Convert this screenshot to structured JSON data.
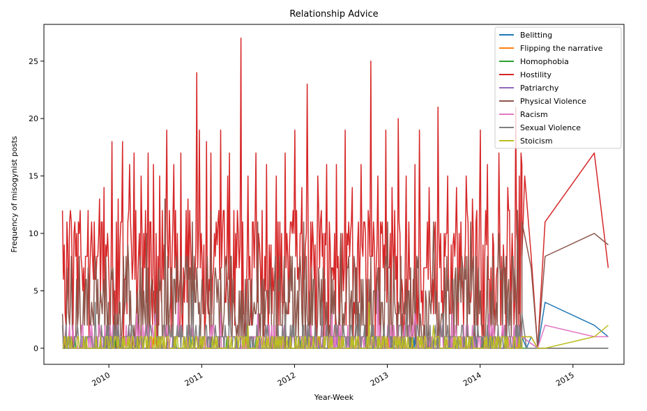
{
  "chart_data": {
    "type": "line",
    "title": "Relationship Advice",
    "xlabel": "Year-Week",
    "ylabel": "Frequency of misogynist posts",
    "xlim": [
      2009.3,
      2015.55
    ],
    "ylim": [
      -1.4,
      28.2
    ],
    "x_ticks": [
      {
        "value": 2010,
        "label": "2010"
      },
      {
        "value": 2011,
        "label": "2011"
      },
      {
        "value": 2012,
        "label": "2012"
      },
      {
        "value": 2013,
        "label": "2013"
      },
      {
        "value": 2014,
        "label": "2014"
      },
      {
        "value": 2015,
        "label": "2015"
      }
    ],
    "y_ticks": [
      0,
      5,
      10,
      15,
      20,
      25
    ],
    "legend_position": "top-right",
    "grid": false,
    "dense_range": [
      2009.5,
      2014.45
    ],
    "series": [
      {
        "name": "Belitting",
        "color": "#1f77b4",
        "dense_profile": {
          "base": 0,
          "high": 1,
          "p_high": 0.15,
          "spikes": []
        },
        "tail": [
          [
            2014.45,
            1
          ],
          [
            2014.5,
            0
          ],
          [
            2014.55,
            1
          ],
          [
            2014.62,
            0
          ],
          [
            2014.7,
            4
          ],
          [
            2015.23,
            2
          ],
          [
            2015.38,
            1
          ]
        ]
      },
      {
        "name": "Flipping the narrative",
        "color": "#ff7f0e",
        "dense_profile": {
          "base": 0,
          "high": 1,
          "p_high": 0.08,
          "spikes": []
        },
        "tail": [
          [
            2014.45,
            1
          ],
          [
            2014.55,
            1
          ],
          [
            2014.62,
            0
          ],
          [
            2015.38,
            0
          ]
        ]
      },
      {
        "name": "Homophobia",
        "color": "#2ca02c",
        "dense_profile": {
          "base": 0,
          "high": 1,
          "p_high": 0.06,
          "spikes": []
        },
        "tail": [
          [
            2014.45,
            0
          ],
          [
            2014.62,
            0
          ],
          [
            2015.38,
            0
          ]
        ]
      },
      {
        "name": "Hostility",
        "color": "#d62728",
        "dense_profile": {
          "base": 6,
          "high": 12,
          "p_high": 0.6,
          "spikes": [
            [
              2009.53,
              3
            ],
            [
              2009.72,
              5
            ],
            [
              2009.82,
              8
            ],
            [
              2009.9,
              13
            ],
            [
              2009.95,
              14
            ],
            [
              2010.03,
              18
            ],
            [
              2010.1,
              13
            ],
            [
              2010.15,
              18
            ],
            [
              2010.22,
              16
            ],
            [
              2010.27,
              17
            ],
            [
              2010.35,
              15
            ],
            [
              2010.42,
              17
            ],
            [
              2010.48,
              16
            ],
            [
              2010.55,
              15
            ],
            [
              2010.62,
              19
            ],
            [
              2010.7,
              16
            ],
            [
              2010.78,
              17
            ],
            [
              2010.85,
              13
            ],
            [
              2010.95,
              24
            ],
            [
              2010.98,
              19
            ],
            [
              2011.05,
              18
            ],
            [
              2011.1,
              17
            ],
            [
              2011.2,
              19
            ],
            [
              2011.28,
              15
            ],
            [
              2011.3,
              17
            ],
            [
              2011.42,
              27
            ],
            [
              2011.5,
              15
            ],
            [
              2011.58,
              17
            ],
            [
              2011.7,
              16
            ],
            [
              2011.8,
              15
            ],
            [
              2011.9,
              17
            ],
            [
              2012.0,
              19
            ],
            [
              2012.08,
              14
            ],
            [
              2012.14,
              23
            ],
            [
              2012.25,
              15
            ],
            [
              2012.35,
              16
            ],
            [
              2012.45,
              16
            ],
            [
              2012.55,
              19
            ],
            [
              2012.62,
              14
            ],
            [
              2012.72,
              16
            ],
            [
              2012.82,
              25
            ],
            [
              2012.9,
              15
            ],
            [
              2012.98,
              19
            ],
            [
              2013.05,
              14
            ],
            [
              2013.12,
              20
            ],
            [
              2013.2,
              15
            ],
            [
              2013.3,
              16
            ],
            [
              2013.35,
              19
            ],
            [
              2013.45,
              14
            ],
            [
              2013.55,
              21
            ],
            [
              2013.65,
              15
            ],
            [
              2013.75,
              14
            ],
            [
              2013.85,
              15
            ],
            [
              2013.92,
              13
            ],
            [
              2014.0,
              19
            ],
            [
              2014.08,
              16
            ],
            [
              2014.2,
              17
            ],
            [
              2014.3,
              14
            ],
            [
              2014.38,
              21
            ],
            [
              2014.42,
              15
            ],
            [
              2014.44,
              17
            ],
            [
              2014.46,
              16
            ]
          ]
        },
        "tail": [
          [
            2014.45,
            8
          ],
          [
            2014.48,
            15
          ],
          [
            2014.55,
            8
          ],
          [
            2014.62,
            0
          ],
          [
            2014.7,
            11
          ],
          [
            2015.23,
            17
          ],
          [
            2015.38,
            7
          ]
        ]
      },
      {
        "name": "Patriarchy",
        "color": "#9467bd",
        "dense_profile": {
          "base": 0,
          "high": 1,
          "p_high": 0.2,
          "spikes": []
        },
        "tail": [
          [
            2014.45,
            1
          ],
          [
            2014.62,
            0
          ],
          [
            2015.38,
            0
          ]
        ]
      },
      {
        "name": "Physical Violence",
        "color": "#8c564b",
        "dense_profile": {
          "base": 3,
          "high": 8,
          "p_high": 0.55,
          "spikes": [
            [
              2009.6,
              2
            ],
            [
              2009.75,
              6
            ],
            [
              2009.88,
              6
            ],
            [
              2010.2,
              9
            ],
            [
              2010.4,
              10
            ],
            [
              2010.6,
              13
            ],
            [
              2010.9,
              11
            ],
            [
              2011.1,
              12
            ],
            [
              2011.6,
              11
            ],
            [
              2012.1,
              11
            ],
            [
              2012.5,
              10
            ],
            [
              2013.0,
              11
            ],
            [
              2013.5,
              11
            ],
            [
              2013.9,
              11
            ],
            [
              2014.2,
              10
            ],
            [
              2014.4,
              12
            ]
          ]
        },
        "tail": [
          [
            2014.45,
            11
          ],
          [
            2014.55,
            7
          ],
          [
            2014.62,
            0
          ],
          [
            2014.7,
            8
          ],
          [
            2015.23,
            10
          ],
          [
            2015.38,
            9
          ]
        ]
      },
      {
        "name": "Racism",
        "color": "#e377c2",
        "dense_profile": {
          "base": 1,
          "high": 2,
          "p_high": 0.35,
          "spikes": [
            [
              2010.3,
              3
            ],
            [
              2010.5,
              3
            ],
            [
              2010.75,
              4
            ],
            [
              2011.2,
              3
            ],
            [
              2011.6,
              3
            ],
            [
              2012.4,
              3
            ],
            [
              2012.9,
              5
            ],
            [
              2013.3,
              3
            ],
            [
              2013.7,
              3
            ],
            [
              2014.1,
              3
            ]
          ]
        },
        "tail": [
          [
            2014.45,
            1
          ],
          [
            2014.62,
            0
          ],
          [
            2014.7,
            2
          ],
          [
            2015.23,
            1
          ],
          [
            2015.38,
            1
          ]
        ]
      },
      {
        "name": "Sexual Violence",
        "color": "#7f7f7f",
        "dense_profile": {
          "base": 1,
          "high": 2,
          "p_high": 0.3,
          "spikes": [
            [
              2009.5,
              2
            ],
            [
              2009.85,
              4
            ],
            [
              2010.9,
              5
            ],
            [
              2011.3,
              4
            ],
            [
              2011.9,
              3
            ],
            [
              2012.3,
              4
            ],
            [
              2012.7,
              3
            ],
            [
              2013.2,
              3
            ],
            [
              2013.6,
              3
            ],
            [
              2014.3,
              4
            ]
          ]
        },
        "tail": [
          [
            2014.45,
            3
          ],
          [
            2014.5,
            0
          ],
          [
            2014.62,
            0
          ],
          [
            2015.38,
            0
          ]
        ]
      },
      {
        "name": "Stoicism",
        "color": "#bcbd22",
        "dense_profile": {
          "base": 0,
          "high": 1,
          "p_high": 0.65,
          "spikes": [
            [
              2010.5,
              2
            ],
            [
              2011.5,
              2
            ],
            [
              2012.8,
              4
            ],
            [
              2013.5,
              2
            ]
          ]
        },
        "tail": [
          [
            2014.45,
            1
          ],
          [
            2014.55,
            1
          ],
          [
            2014.62,
            0
          ],
          [
            2014.7,
            0
          ],
          [
            2015.23,
            1
          ],
          [
            2015.38,
            2
          ]
        ]
      }
    ]
  }
}
